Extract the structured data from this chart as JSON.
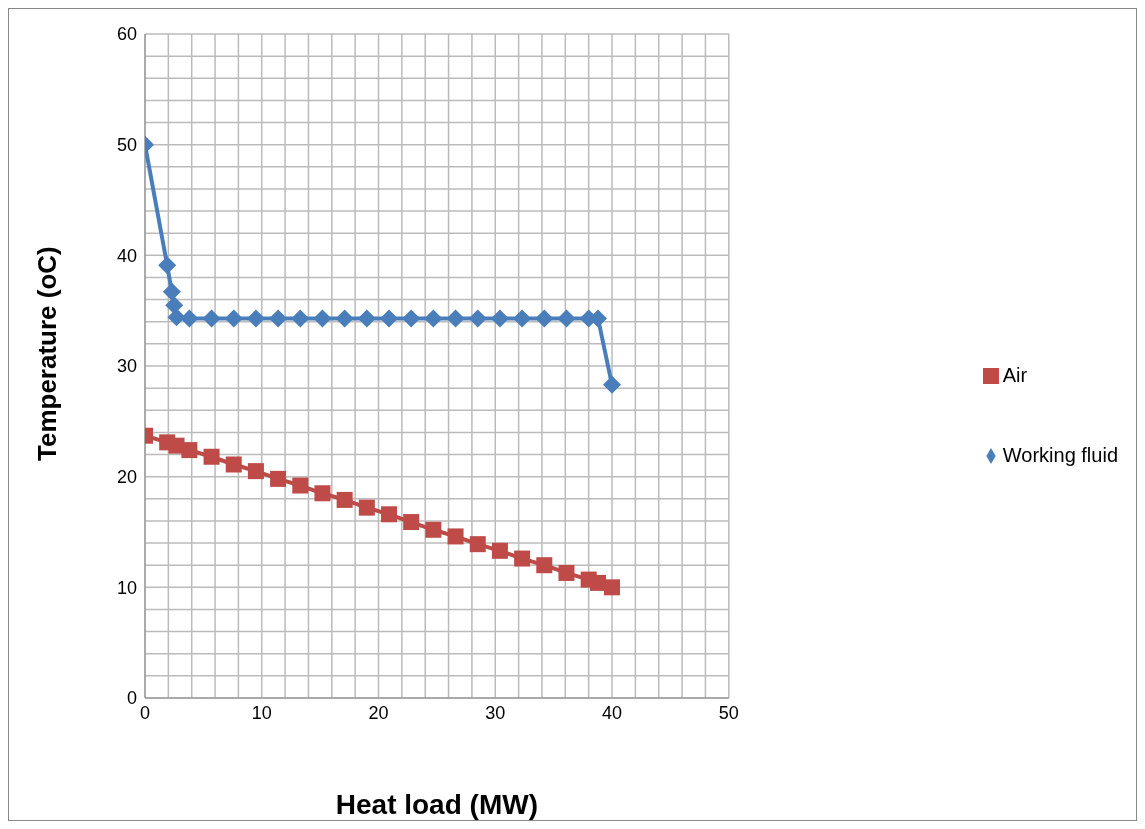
{
  "chart_data": {
    "type": "line",
    "xlabel": "Heat load (MW)",
    "ylabel": "Temperature (oC)",
    "xlim": [
      0,
      50
    ],
    "xticks": [
      0,
      {
        "value": 2,
        "label": null
      },
      {
        "value": 4,
        "label": null
      },
      {
        "value": 6,
        "label": null
      },
      {
        "value": 8,
        "label": null
      },
      10,
      {
        "value": 12,
        "label": null
      },
      {
        "value": 14,
        "label": null
      },
      {
        "value": 16,
        "label": null
      },
      {
        "value": 18,
        "label": null
      },
      20,
      {
        "value": 22,
        "label": null
      },
      {
        "value": 24,
        "label": null
      },
      {
        "value": 26,
        "label": null
      },
      {
        "value": 28,
        "label": null
      },
      30,
      {
        "value": 32,
        "label": null
      },
      {
        "value": 34,
        "label": null
      },
      {
        "value": 36,
        "label": null
      },
      {
        "value": 38,
        "label": null
      },
      40,
      {
        "value": 42,
        "label": null
      },
      {
        "value": 44,
        "label": null
      },
      {
        "value": 46,
        "label": null
      },
      {
        "value": 48,
        "label": null
      },
      50
    ],
    "ylim": [
      0,
      60
    ],
    "yticks": [
      0,
      {
        "value": 2,
        "label": null
      },
      {
        "value": 4,
        "label": null
      },
      {
        "value": 6,
        "label": null
      },
      {
        "value": 8,
        "label": null
      },
      10,
      {
        "value": 12,
        "label": null
      },
      {
        "value": 14,
        "label": null
      },
      {
        "value": 16,
        "label": null
      },
      {
        "value": 18,
        "label": null
      },
      20,
      {
        "value": 22,
        "label": null
      },
      {
        "value": 24,
        "label": null
      },
      {
        "value": 26,
        "label": null
      },
      {
        "value": 28,
        "label": null
      },
      30,
      {
        "value": 32,
        "label": null
      },
      {
        "value": 34,
        "label": null
      },
      {
        "value": 36,
        "label": null
      },
      {
        "value": 38,
        "label": null
      },
      40,
      {
        "value": 42,
        "label": null
      },
      {
        "value": 44,
        "label": null
      },
      {
        "value": 46,
        "label": null
      },
      {
        "value": 48,
        "label": null
      },
      50,
      {
        "value": 52,
        "label": null
      },
      {
        "value": 54,
        "label": null
      },
      {
        "value": 56,
        "label": null
      },
      {
        "value": 58,
        "label": null
      },
      60
    ],
    "grid": true,
    "legend": "right",
    "line_style": "solid",
    "series": [
      {
        "name": "Working fluid",
        "color": "#4a7ebb",
        "marker": "diamond",
        "x": [
          0,
          1.9,
          2.3,
          2.5,
          2.7,
          3.8,
          5.7,
          7.6,
          9.5,
          11.4,
          13.3,
          15.2,
          17.1,
          19.0,
          20.9,
          22.8,
          24.7,
          26.6,
          28.5,
          30.4,
          32.3,
          34.2,
          36.1,
          38.0,
          38.8,
          40.0
        ],
        "values": [
          50,
          39.1,
          36.7,
          35.5,
          34.4,
          34.3,
          34.3,
          34.3,
          34.3,
          34.3,
          34.3,
          34.3,
          34.3,
          34.3,
          34.3,
          34.3,
          34.3,
          34.3,
          34.3,
          34.3,
          34.3,
          34.3,
          34.3,
          34.3,
          34.3,
          28.3
        ]
      },
      {
        "name": "Air",
        "color": "#be4b48",
        "marker": "square",
        "x": [
          0,
          1.9,
          2.7,
          3.8,
          5.7,
          7.6,
          9.5,
          11.4,
          13.3,
          15.2,
          17.1,
          19.0,
          20.9,
          22.8,
          24.7,
          26.6,
          28.5,
          30.4,
          32.3,
          34.2,
          36.1,
          38.0,
          38.8,
          40.0
        ],
        "values": [
          23.7,
          23.1,
          22.8,
          22.4,
          21.8,
          21.1,
          20.5,
          19.8,
          19.2,
          18.5,
          17.9,
          17.2,
          16.6,
          15.9,
          15.2,
          14.6,
          13.9,
          13.3,
          12.6,
          12.0,
          11.3,
          10.7,
          10.4,
          10.0
        ]
      }
    ]
  }
}
